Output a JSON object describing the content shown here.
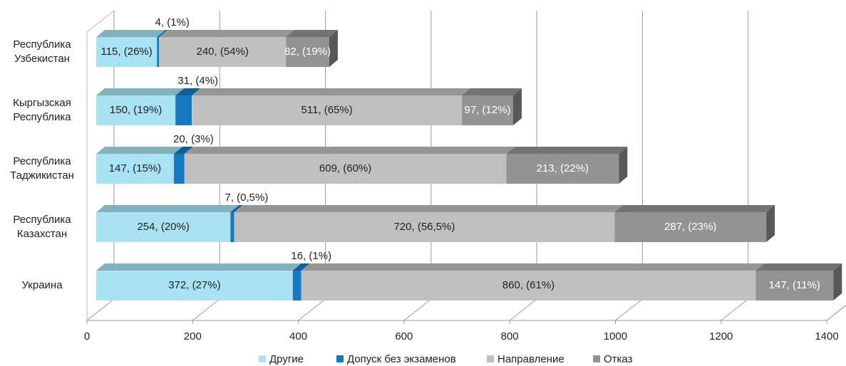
{
  "chart_data": {
    "type": "bar3d_stacked_horizontal",
    "categories": [
      "Республика Узбекистан",
      "Кыргызская Республика",
      "Республика Таджикистан",
      "Республика Казахстан",
      "Украина"
    ],
    "series": [
      {
        "name": "Другие",
        "color": "#a9e3f3",
        "label_color": "#222222",
        "label_position": "center",
        "values": [
          115,
          150,
          147,
          254,
          372
        ],
        "value_labels": [
          "115, (26%)",
          "150, (19%)",
          "147, (15%)",
          "254, (20%)",
          "372, (27%)"
        ]
      },
      {
        "name": "Допуск без экзаменов",
        "color": "#1878c0",
        "label_color": "#222222",
        "label_position": "above",
        "values": [
          4,
          31,
          20,
          7,
          16
        ],
        "value_labels": [
          "4, (1%)",
          "31, (4%)",
          "20, (3%)",
          "7, (0,5%)",
          "16, (1%)"
        ]
      },
      {
        "name": "Направление",
        "color": "#c0c0c0",
        "label_color": "#222222",
        "label_position": "center",
        "values": [
          240,
          511,
          609,
          720,
          860
        ],
        "value_labels": [
          "240, (54%)",
          "511, (65%)",
          "609, (60%)",
          "720, (56,5%)",
          "860, (61%)"
        ]
      },
      {
        "name": "Отказ",
        "color": "#939393",
        "label_color": "#ffffff",
        "label_position": "center",
        "values": [
          82,
          97,
          213,
          287,
          147
        ],
        "value_labels": [
          "82, (19%)",
          "97, (12%)",
          "213, (22%)",
          "287, (23%)",
          "147, (11%)"
        ]
      }
    ],
    "xlim": [
      0,
      1400
    ],
    "xticks": [
      0,
      200,
      400,
      600,
      800,
      1000,
      1200,
      1400
    ],
    "grid": true,
    "legend": "bottom"
  }
}
